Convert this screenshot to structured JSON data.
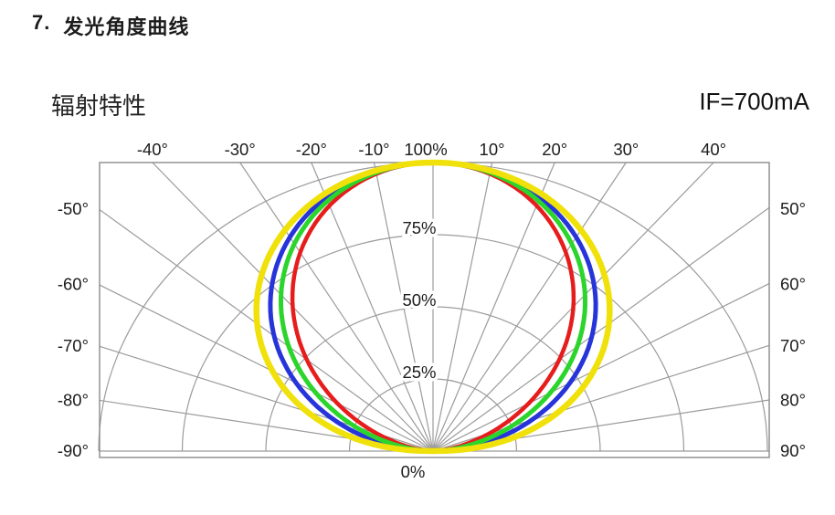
{
  "page": {
    "section_number": "7.",
    "section_title": "发光角度曲线"
  },
  "header": {
    "chart_title": "辐射特性",
    "condition_label": "IF=700mA"
  },
  "chart_data": {
    "type": "polar_radiation_pattern",
    "title": "辐射特性",
    "condition_label": "IF=700mA",
    "angle_axis": {
      "unit": "deg",
      "min": -90,
      "max": 90,
      "grid_step": 10,
      "top_tick_labels": [
        "-40°",
        "-30°",
        "-20°",
        "-10°",
        "100%",
        "10°",
        "20°",
        "30°",
        "40°"
      ],
      "left_tick_labels": [
        "-50°",
        "-60°",
        "-70°",
        "-80°",
        "-90°"
      ],
      "right_tick_labels": [
        "50°",
        "60°",
        "70°",
        "80°",
        "90°"
      ]
    },
    "radial_axis": {
      "unit": "relative intensity %",
      "min": 0,
      "max": 100,
      "grid_circles_pct": [
        25,
        50,
        75,
        100
      ],
      "labels": [
        "100%",
        "75%",
        "50%",
        "25%",
        "0%"
      ]
    },
    "grid_color": "#9b9b9b",
    "frame_color": "#8a8a8a",
    "series": [
      {
        "name": "red",
        "color": "#e71c1c",
        "stroke_width": 4.5,
        "exponent": 1.6,
        "angles_deg": [
          0,
          10,
          20,
          30,
          40,
          50,
          60,
          70,
          80,
          90
        ],
        "relative_intensity_pct": [
          100,
          97.6,
          90.5,
          79.5,
          65.3,
          49.3,
          33.0,
          18.0,
          6.1,
          0
        ]
      },
      {
        "name": "blue",
        "color": "#2634da",
        "stroke_width": 5,
        "exponent": 1.08,
        "angles_deg": [
          0,
          10,
          20,
          30,
          40,
          50,
          60,
          70,
          80,
          90
        ],
        "relative_intensity_pct": [
          100,
          98.4,
          93.5,
          85.6,
          75.0,
          62.0,
          47.3,
          31.4,
          15.1,
          0
        ]
      },
      {
        "name": "green",
        "color": "#2bd52b",
        "stroke_width": 5,
        "exponent": 1.3,
        "angles_deg": [
          0,
          10,
          20,
          30,
          40,
          50,
          60,
          70,
          80,
          90
        ],
        "relative_intensity_pct": [
          100,
          98.0,
          92.2,
          83.0,
          70.7,
          56.3,
          40.6,
          24.8,
          10.3,
          0
        ]
      },
      {
        "name": "yellow",
        "color": "#f0e10a",
        "stroke_width": 6.5,
        "exponent": 0.85,
        "angles_deg": [
          0,
          10,
          20,
          30,
          40,
          50,
          60,
          70,
          80,
          90
        ],
        "relative_intensity_pct": [
          100,
          98.7,
          94.9,
          88.5,
          79.8,
          68.7,
          55.5,
          40.2,
          22.6,
          0
        ]
      }
    ]
  }
}
